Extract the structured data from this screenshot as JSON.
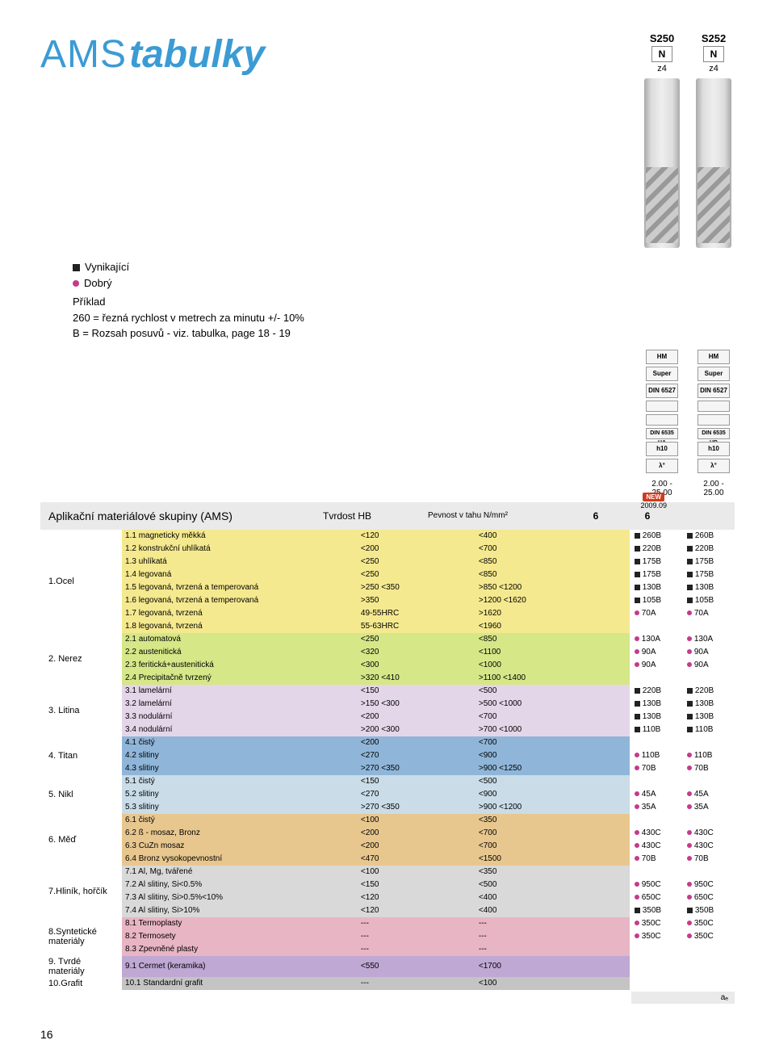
{
  "title": {
    "ams": "AMS",
    "tabulky": "tabulky"
  },
  "tools": [
    {
      "code": "S250",
      "n": "N",
      "z": "z4"
    },
    {
      "code": "S252",
      "n": "N",
      "z": "z4"
    }
  ],
  "legend": {
    "excellent": "Vynikající",
    "good": "Dobrý",
    "example_title": "Příklad",
    "example_line1": "260 = řezná rychlost v metrech za minutu +/- 10%",
    "example_line2": "B = Rozsah posuvů - viz. tabulka, page 18 - 19"
  },
  "badges": [
    [
      "HM",
      "HM"
    ],
    [
      "Super",
      "Super"
    ],
    [
      "DIN 6527",
      "DIN 6527"
    ],
    [
      "",
      ""
    ],
    [
      "",
      ""
    ],
    [
      "DIN 6535 HA",
      "DIN 6535 HB"
    ],
    [
      "h10",
      "h10"
    ],
    [
      "λ°",
      "λ°"
    ]
  ],
  "prices": [
    "2.00 - 25.00",
    "2.00 - 25.00"
  ],
  "year": "2009.09",
  "section": {
    "label": "Aplikační materiálové skupiny (AMS)",
    "tvrdost": "Tvrdost HB",
    "pevnost": "Pevnost v tahu N/mm²",
    "col1": "6",
    "col2": "6"
  },
  "groups": [
    {
      "cat": "1.Ocel",
      "color": "#f5e98f",
      "rows": [
        {
          "d": "1.1 magneticky měkká",
          "hb": "<120",
          "pv": "<400",
          "v": [
            "■260B",
            "■260B"
          ]
        },
        {
          "d": "1.2 konstrukční uhlíkatá",
          "hb": "<200",
          "pv": "<700",
          "v": [
            "■220B",
            "■220B"
          ]
        },
        {
          "d": "1.3 uhlíkatá",
          "hb": "<250",
          "pv": "<850",
          "v": [
            "■175B",
            "■175B"
          ]
        },
        {
          "d": "1.4 legovaná",
          "hb": "<250",
          "pv": "<850",
          "v": [
            "■175B",
            "■175B"
          ]
        },
        {
          "d": "1.5 legovaná, tvrzená a temperovaná",
          "hb": ">250 <350",
          "pv": ">850  <1200",
          "v": [
            "■130B",
            "■130B"
          ]
        },
        {
          "d": "1.6 legovaná, tvrzená a temperovaná",
          "hb": ">350",
          "pv": ">1200 <1620",
          "v": [
            "■105B",
            "■105B"
          ]
        },
        {
          "d": "1.7 legovaná, tvrzená",
          "hb": "49-55HRC",
          "pv": ">1620",
          "v": [
            "●70A",
            "●70A"
          ]
        },
        {
          "d": "1.8 legovaná, tvrzená",
          "hb": "55-63HRC",
          "pv": "<1960",
          "v": [
            "",
            ""
          ]
        }
      ]
    },
    {
      "cat": "2. Nerez",
      "color": "#d6e788",
      "rows": [
        {
          "d": "2.1 automatová",
          "hb": "<250",
          "pv": "<850",
          "v": [
            "●130A",
            "●130A"
          ]
        },
        {
          "d": "2.2 austenitická",
          "hb": "<320",
          "pv": "<1100",
          "v": [
            "●90A",
            "●90A"
          ]
        },
        {
          "d": "2.3 feritická+austenitická",
          "hb": "<300",
          "pv": "<1000",
          "v": [
            "●90A",
            "●90A"
          ]
        },
        {
          "d": "2.4 Precipitačně tvrzený",
          "hb": ">320 <410",
          "pv": ">1100 <1400",
          "v": [
            "",
            ""
          ]
        }
      ]
    },
    {
      "cat": "3. Litina",
      "color": "#e4d6e9",
      "rows": [
        {
          "d": "3.1 lamelární",
          "hb": "<150",
          "pv": "<500",
          "v": [
            "■220B",
            "■220B"
          ]
        },
        {
          "d": "3.2 lamelární",
          "hb": ">150 <300",
          "pv": ">500 <1000",
          "v": [
            "■130B",
            "■130B"
          ]
        },
        {
          "d": "3.3 nodulární",
          "hb": "<200",
          "pv": "<700",
          "v": [
            "■130B",
            "■130B"
          ]
        },
        {
          "d": "3.4 nodulární",
          "hb": ">200 <300",
          "pv": ">700 <1000",
          "v": [
            "■110B",
            "■110B"
          ]
        }
      ]
    },
    {
      "cat": "4. Titan",
      "color": "#8fb6d9",
      "rows": [
        {
          "d": "4.1 čistý",
          "hb": "<200",
          "pv": "<700",
          "v": [
            "",
            ""
          ]
        },
        {
          "d": "4.2 slitiny",
          "hb": "<270",
          "pv": "<900",
          "v": [
            "●110B",
            "●110B"
          ]
        },
        {
          "d": "4.3 slitiny",
          "hb": ">270 <350",
          "pv": ">900 <1250",
          "v": [
            "●70B",
            "●70B"
          ]
        }
      ]
    },
    {
      "cat": "5. Nikl",
      "color": "#c9dce8",
      "rows": [
        {
          "d": "5.1 čistý",
          "hb": "<150",
          "pv": "<500",
          "v": [
            "",
            ""
          ]
        },
        {
          "d": "5.2 slitiny",
          "hb": "<270",
          "pv": "<900",
          "v": [
            "●45A",
            "●45A"
          ]
        },
        {
          "d": "5.3 slitiny",
          "hb": ">270 <350",
          "pv": ">900 <1200",
          "v": [
            "●35A",
            "●35A"
          ]
        }
      ]
    },
    {
      "cat": "6. Měď",
      "color": "#e8c78f",
      "rows": [
        {
          "d": "6.1 čistý",
          "hb": "<100",
          "pv": "<350",
          "v": [
            "",
            ""
          ]
        },
        {
          "d": "6.2 ß - mosaz, Bronz",
          "hb": "<200",
          "pv": "<700",
          "v": [
            "●430C",
            "●430C"
          ]
        },
        {
          "d": "6.3 CuZn mosaz",
          "hb": "<200",
          "pv": "<700",
          "v": [
            "●430C",
            "●430C"
          ]
        },
        {
          "d": "6.4 Bronz vysokopevnostní",
          "hb": "<470",
          "pv": "<1500",
          "v": [
            "●70B",
            "●70B"
          ]
        }
      ]
    },
    {
      "cat": "7.Hliník, hořčík",
      "color": "#d9d9d9",
      "rows": [
        {
          "d": "7.1 Al, Mg, tvářené",
          "hb": "<100",
          "pv": "<350",
          "v": [
            "",
            ""
          ]
        },
        {
          "d": "7.2 Al slitiny, Si<0.5%",
          "hb": "<150",
          "pv": "<500",
          "v": [
            "●950C",
            "●950C"
          ]
        },
        {
          "d": "7.3 Al slitiny, Si>0.5%<10%",
          "hb": "<120",
          "pv": "<400",
          "v": [
            "●650C",
            "●650C"
          ]
        },
        {
          "d": "7.4 Al slitiny, Si>10%",
          "hb": "<120",
          "pv": "<400",
          "v": [
            "■350B",
            "■350B"
          ]
        }
      ]
    },
    {
      "cat": "8.Syntetické materiály",
      "color": "#e8b5c4",
      "rows": [
        {
          "d": "8.1 Termoplasty",
          "hb": "---",
          "pv": "---",
          "v": [
            "●350C",
            "●350C"
          ]
        },
        {
          "d": "8.2 Termosety",
          "hb": "---",
          "pv": "---",
          "v": [
            "●350C",
            "●350C"
          ]
        },
        {
          "d": "8.3 Zpevněné plasty",
          "hb": "---",
          "pv": "---",
          "v": [
            "",
            ""
          ]
        }
      ]
    },
    {
      "cat": "9. Tvrdé materiály",
      "color": "#bfa8d4",
      "rows": [
        {
          "d": "9.1 Cermet (keramika)",
          "hb": "<550",
          "pv": "<1700",
          "v": [
            "",
            ""
          ]
        }
      ]
    },
    {
      "cat": "10.Grafit",
      "color": "#c4c4c4",
      "rows": [
        {
          "d": "10.1 Standardní grafit",
          "hb": "---",
          "pv": "<100",
          "v": [
            "",
            ""
          ]
        }
      ]
    }
  ],
  "footer_label": "aₑ",
  "page_num": "16"
}
